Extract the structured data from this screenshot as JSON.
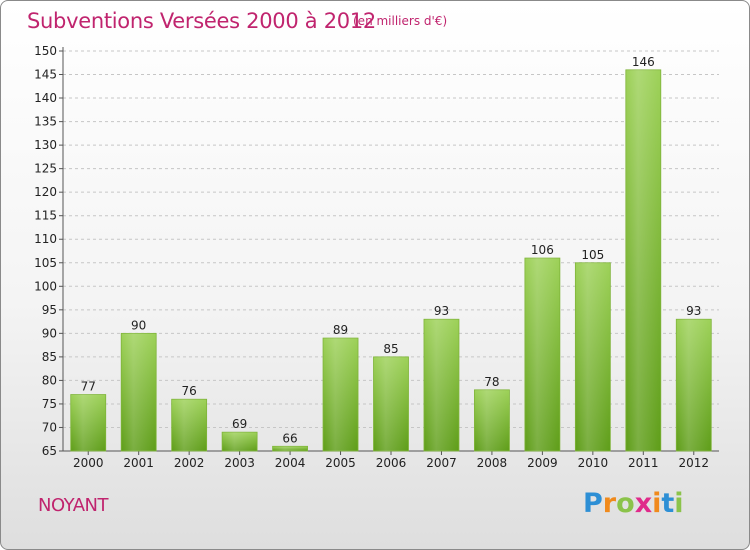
{
  "title": "Subventions Versées 2000 à 2012",
  "subtitle": "(en milliers d'€)",
  "place": "NOYANT",
  "logo": {
    "letters": [
      "P",
      "r",
      "o",
      "x",
      "i",
      "t",
      "i"
    ],
    "colors": [
      "#2d8fd5",
      "#f08a1c",
      "#8bc34a",
      "#e02a8a",
      "#f08a1c",
      "#2d8fd5",
      "#8bc34a"
    ]
  },
  "colors": {
    "title": "#c0246e",
    "bar_top": "#9dd158",
    "bar_bottom": "#5e9d18"
  },
  "chart_data": {
    "type": "bar",
    "title": "Subventions Versées 2000 à 2012",
    "subtitle": "(en milliers d'€)",
    "categories": [
      "2000",
      "2001",
      "2002",
      "2003",
      "2004",
      "2005",
      "2006",
      "2007",
      "2008",
      "2009",
      "2010",
      "2011",
      "2012"
    ],
    "values": [
      77,
      90,
      76,
      69,
      66,
      89,
      85,
      93,
      78,
      106,
      105,
      146,
      93
    ],
    "ylim": [
      65,
      150
    ],
    "yticks": [
      65,
      70,
      75,
      80,
      85,
      90,
      95,
      100,
      105,
      110,
      115,
      120,
      125,
      130,
      135,
      140,
      145,
      150
    ],
    "grid": "horizontal dashed",
    "data_labels": true
  }
}
